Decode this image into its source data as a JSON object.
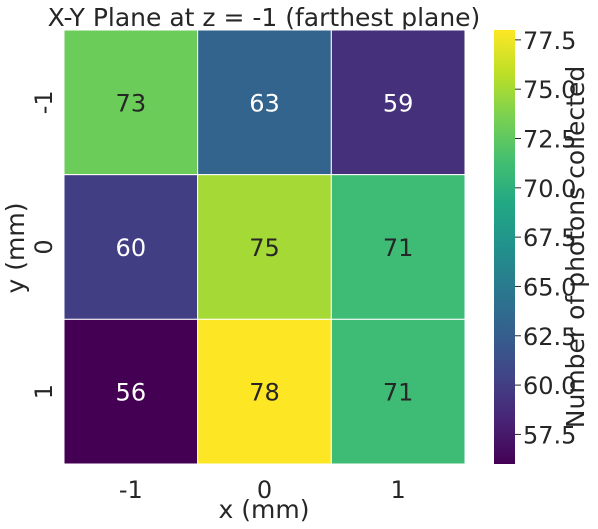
{
  "chart_data": {
    "type": "heatmap",
    "title": "X-Y Plane at z = -1 (farthest plane)",
    "xlabel": "x (mm)",
    "ylabel": "y (mm)",
    "x_categories": [
      "-1",
      "0",
      "1"
    ],
    "y_categories": [
      "-1",
      "0",
      "1"
    ],
    "values": [
      [
        73,
        63,
        59
      ],
      [
        60,
        75,
        71
      ],
      [
        56,
        78,
        71
      ]
    ],
    "colorbar": {
      "label": "Number of photons collected",
      "range": [
        56,
        78
      ],
      "ticks": [
        57.5,
        60.0,
        62.5,
        65.0,
        67.5,
        70.0,
        72.5,
        75.0,
        77.5
      ],
      "tick_labels": [
        "57.5",
        "60.0",
        "62.5",
        "65.0",
        "67.5",
        "70.0",
        "72.5",
        "75.0",
        "77.5"
      ],
      "colormap": "viridis"
    },
    "annotation_color_dark": "#262626",
    "annotation_color_light": "#ffffff"
  }
}
